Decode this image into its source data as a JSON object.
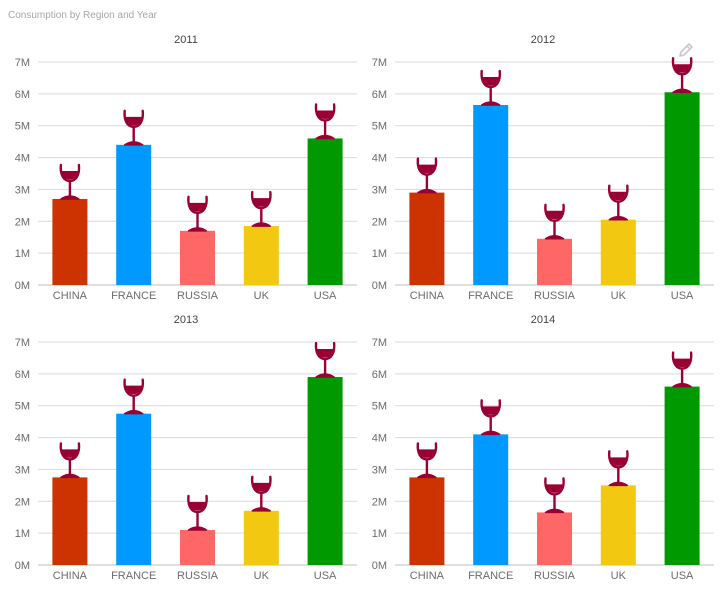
{
  "title": "Consumption by Region and Year",
  "icons": {
    "glass": "wine-glass-icon",
    "edit": "pencil-icon"
  },
  "colors": {
    "CHINA": "#CC3300",
    "FRANCE": "#0099FF",
    "RUSSIA": "#FF6666",
    "UK": "#F2C811",
    "USA": "#009900",
    "wine": "#990033",
    "grid": "#d9d9d9",
    "axis_text": "#6b6b6b"
  },
  "chart_data": [
    {
      "type": "bar",
      "title": "2011",
      "categories": [
        "CHINA",
        "FRANCE",
        "RUSSIA",
        "UK",
        "USA"
      ],
      "values": [
        2.7,
        4.4,
        1.7,
        1.85,
        4.6
      ],
      "ylim": [
        0,
        7
      ],
      "yticks": [
        "0M",
        "1M",
        "2M",
        "3M",
        "4M",
        "5M",
        "6M",
        "7M"
      ],
      "xlabel": "",
      "ylabel": "",
      "grid": true
    },
    {
      "type": "bar",
      "title": "2012",
      "categories": [
        "CHINA",
        "FRANCE",
        "RUSSIA",
        "UK",
        "USA"
      ],
      "values": [
        2.9,
        5.65,
        1.45,
        2.05,
        6.05
      ],
      "ylim": [
        0,
        7
      ],
      "yticks": [
        "0M",
        "1M",
        "2M",
        "3M",
        "4M",
        "5M",
        "6M",
        "7M"
      ],
      "xlabel": "",
      "ylabel": "",
      "grid": true
    },
    {
      "type": "bar",
      "title": "2013",
      "categories": [
        "CHINA",
        "FRANCE",
        "RUSSIA",
        "UK",
        "USA"
      ],
      "values": [
        2.75,
        4.75,
        1.1,
        1.7,
        5.9
      ],
      "ylim": [
        0,
        7
      ],
      "yticks": [
        "0M",
        "1M",
        "2M",
        "3M",
        "4M",
        "5M",
        "6M",
        "7M"
      ],
      "xlabel": "",
      "ylabel": "",
      "grid": true
    },
    {
      "type": "bar",
      "title": "2014",
      "categories": [
        "CHINA",
        "FRANCE",
        "RUSSIA",
        "UK",
        "USA"
      ],
      "values": [
        2.75,
        4.1,
        1.65,
        2.5,
        5.6
      ],
      "ylim": [
        0,
        7
      ],
      "yticks": [
        "0M",
        "1M",
        "2M",
        "3M",
        "4M",
        "5M",
        "6M",
        "7M"
      ],
      "xlabel": "",
      "ylabel": "",
      "grid": true
    }
  ]
}
